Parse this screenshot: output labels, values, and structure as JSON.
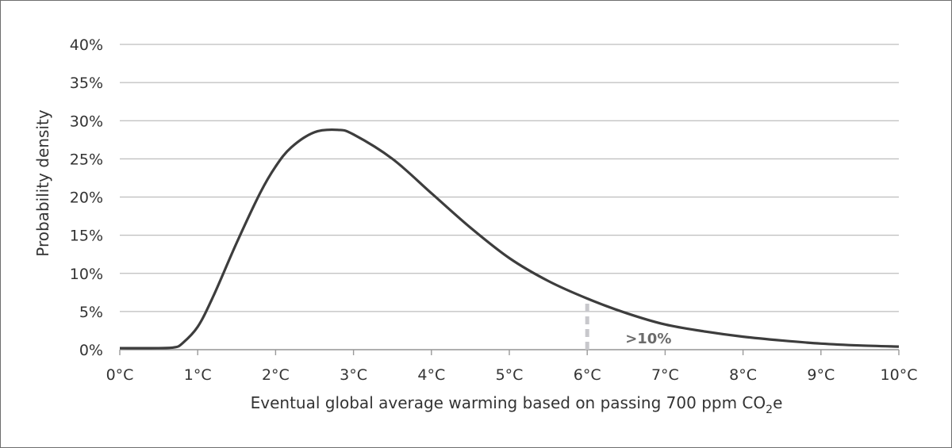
{
  "chart_data": {
    "type": "line",
    "xlabel_prefix": "Eventual global average warming based on passing 700 ppm CO",
    "xlabel_subscript": "2",
    "xlabel_suffix": "e",
    "ylabel": "Probability density",
    "xlim": [
      0,
      10
    ],
    "ylim": [
      0,
      40
    ],
    "x_ticks": [
      0,
      1,
      2,
      3,
      4,
      5,
      6,
      7,
      8,
      9,
      10
    ],
    "x_tick_labels": [
      "0°C",
      "1°C",
      "2°C",
      "3°C",
      "4°C",
      "5°C",
      "6°C",
      "7°C",
      "8°C",
      "9°C",
      "10°C"
    ],
    "y_ticks": [
      0,
      5,
      10,
      15,
      20,
      25,
      30,
      35,
      40
    ],
    "y_tick_labels": [
      "0%",
      "5%",
      "10%",
      "15%",
      "20%",
      "25%",
      "30%",
      "35%",
      "40%"
    ],
    "grid": true,
    "series": [
      {
        "name": "Probability density",
        "color": "#3d3d3d",
        "x": [
          0,
          0.5,
          0.7,
          0.8,
          1.0,
          1.2,
          1.5,
          1.8,
          2.0,
          2.2,
          2.5,
          2.8,
          3.0,
          3.5,
          4.0,
          4.5,
          5.0,
          5.5,
          6.0,
          6.5,
          7.0,
          7.5,
          8.0,
          8.5,
          9.0,
          9.5,
          10.0
        ],
        "y": [
          0.2,
          0.2,
          0.3,
          0.8,
          3.0,
          7.0,
          14.0,
          20.5,
          24.0,
          26.5,
          28.5,
          28.8,
          28.2,
          25.0,
          20.5,
          16.0,
          12.0,
          9.0,
          6.7,
          4.8,
          3.3,
          2.4,
          1.7,
          1.2,
          0.8,
          0.55,
          0.4
        ]
      }
    ],
    "threshold": {
      "x": 6,
      "y": 6.8,
      "color": "#c8c8cc",
      "label": ">10%"
    }
  }
}
